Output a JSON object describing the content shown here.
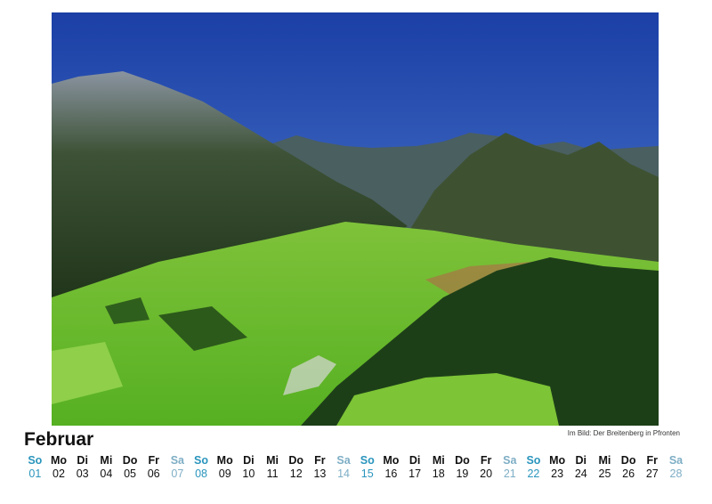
{
  "month": "Februar",
  "caption": "Im Bild: Der Breitenberg in Pfronten",
  "colors": {
    "sunday": "#2a95bd",
    "saturday": "#7eaec5",
    "weekday": "#111111"
  },
  "days": [
    {
      "name": "So",
      "date": "01"
    },
    {
      "name": "Mo",
      "date": "02"
    },
    {
      "name": "Di",
      "date": "03"
    },
    {
      "name": "Mi",
      "date": "04"
    },
    {
      "name": "Do",
      "date": "05"
    },
    {
      "name": "Fr",
      "date": "06"
    },
    {
      "name": "Sa",
      "date": "07"
    },
    {
      "name": "So",
      "date": "08"
    },
    {
      "name": "Mo",
      "date": "09"
    },
    {
      "name": "Di",
      "date": "10"
    },
    {
      "name": "Mi",
      "date": "11"
    },
    {
      "name": "Do",
      "date": "12"
    },
    {
      "name": "Fr",
      "date": "13"
    },
    {
      "name": "Sa",
      "date": "14"
    },
    {
      "name": "So",
      "date": "15"
    },
    {
      "name": "Mo",
      "date": "16"
    },
    {
      "name": "Di",
      "date": "17"
    },
    {
      "name": "Mi",
      "date": "18"
    },
    {
      "name": "Do",
      "date": "19"
    },
    {
      "name": "Fr",
      "date": "20"
    },
    {
      "name": "Sa",
      "date": "21"
    },
    {
      "name": "So",
      "date": "22"
    },
    {
      "name": "Mo",
      "date": "23"
    },
    {
      "name": "Di",
      "date": "24"
    },
    {
      "name": "Mi",
      "date": "25"
    },
    {
      "name": "Do",
      "date": "26"
    },
    {
      "name": "Fr",
      "date": "27"
    },
    {
      "name": "Sa",
      "date": "28"
    }
  ]
}
